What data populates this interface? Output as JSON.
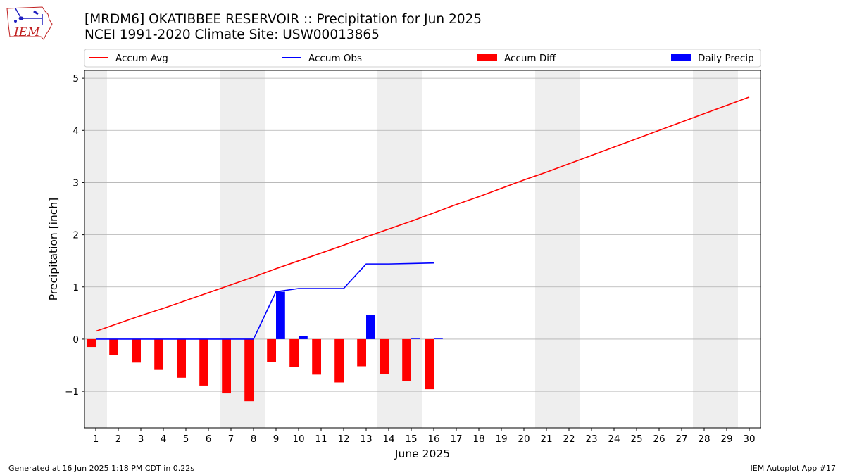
{
  "header": {
    "title_line1": "[MRDM6] OKATIBBEE RESERVOIR :: Precipitation for Jun 2025",
    "title_line2": "NCEI 1991-2020 Climate Site: USW00013865",
    "logo_text": "IEM"
  },
  "footer": {
    "left": "Generated at 16 Jun 2025 1:18 PM CDT in 0.22s",
    "right": "IEM Autoplot App #17"
  },
  "colors": {
    "accum_avg": "#ff0000",
    "accum_obs": "#0000ff",
    "accum_diff": "#ff0000",
    "daily_precip": "#0000ff",
    "weekend_shade": "#eeeeee",
    "grid": "#b0b0b0"
  },
  "chart_data": {
    "type": "bar",
    "xlabel": "June 2025",
    "ylabel": "Precipitation [inch]",
    "xlim": [
      0.5,
      30.5
    ],
    "ylim": [
      -1.7,
      5.15
    ],
    "yticks": [
      {
        "value": -1,
        "label": "−1"
      },
      {
        "value": 0,
        "label": "0"
      },
      {
        "value": 1,
        "label": "1"
      },
      {
        "value": 2,
        "label": "2"
      },
      {
        "value": 3,
        "label": "3"
      },
      {
        "value": 4,
        "label": "4"
      },
      {
        "value": 5,
        "label": "5"
      }
    ],
    "xticks": [
      "1",
      "2",
      "3",
      "4",
      "5",
      "6",
      "7",
      "8",
      "9",
      "10",
      "11",
      "12",
      "13",
      "14",
      "15",
      "16",
      "17",
      "18",
      "19",
      "20",
      "21",
      "22",
      "23",
      "24",
      "25",
      "26",
      "27",
      "28",
      "29",
      "30"
    ],
    "grid": "horizontal",
    "legend_position": "top",
    "weekend_shading": [
      [
        1,
        1
      ],
      [
        7,
        8
      ],
      [
        14,
        15
      ],
      [
        21,
        22
      ],
      [
        28,
        29
      ]
    ],
    "legend": [
      "Accum Avg",
      "Accum Obs",
      "Accum Diff",
      "Daily Precip"
    ],
    "series": [
      {
        "name": "Accum Avg",
        "kind": "line",
        "x": [
          1,
          2,
          3,
          4,
          5,
          6,
          7,
          8,
          9,
          10,
          11,
          12,
          13,
          14,
          15,
          16,
          17,
          18,
          19,
          20,
          21,
          22,
          23,
          24,
          25,
          26,
          27,
          28,
          29,
          30
        ],
        "values": [
          0.15,
          0.3,
          0.45,
          0.59,
          0.74,
          0.89,
          1.04,
          1.19,
          1.35,
          1.5,
          1.65,
          1.8,
          1.96,
          2.11,
          2.26,
          2.42,
          2.58,
          2.73,
          2.89,
          3.05,
          3.2,
          3.36,
          3.52,
          3.68,
          3.84,
          4.0,
          4.16,
          4.32,
          4.48,
          4.64
        ]
      },
      {
        "name": "Accum Obs",
        "kind": "line",
        "x": [
          1,
          2,
          3,
          4,
          5,
          6,
          7,
          8,
          9,
          10,
          11,
          12,
          13,
          14,
          15,
          16
        ],
        "values": [
          0,
          0,
          0,
          0,
          0,
          0,
          0,
          0,
          0.91,
          0.97,
          0.97,
          0.97,
          1.44,
          1.44,
          1.45,
          1.46
        ]
      },
      {
        "name": "Accum Diff",
        "kind": "bar",
        "x": [
          1,
          2,
          3,
          4,
          5,
          6,
          7,
          8,
          9,
          10,
          11,
          12,
          13,
          14,
          15,
          16
        ],
        "values": [
          -0.15,
          -0.3,
          -0.45,
          -0.59,
          -0.74,
          -0.89,
          -1.04,
          -1.19,
          -0.44,
          -0.53,
          -0.68,
          -0.83,
          -0.52,
          -0.67,
          -0.81,
          -0.96
        ]
      },
      {
        "name": "Daily Precip",
        "kind": "bar",
        "x": [
          1,
          2,
          3,
          4,
          5,
          6,
          7,
          8,
          9,
          10,
          11,
          12,
          13,
          14,
          15,
          16
        ],
        "values": [
          0,
          0,
          0,
          0,
          0,
          0,
          0,
          0,
          0.91,
          0.06,
          0,
          0,
          0.47,
          0,
          0.01,
          0.01
        ]
      }
    ]
  }
}
